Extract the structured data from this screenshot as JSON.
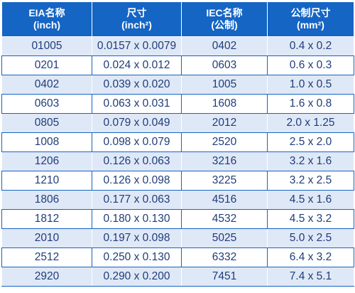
{
  "table": {
    "headers": [
      {
        "line1": "EIA名称",
        "line2": "(inch)"
      },
      {
        "line1": "尺寸",
        "line2": "(inch²)"
      },
      {
        "line1": "IEC名称",
        "line2": "(公制)"
      },
      {
        "line1": "公制尺寸",
        "line2": "(mm²)"
      }
    ],
    "rows": [
      [
        "01005",
        "0.0157 x 0.0079",
        "0402",
        "0.4 x 0.2"
      ],
      [
        "0201",
        "0.024 x 0.012",
        "0603",
        "0.6 x 0.3"
      ],
      [
        "0402",
        "0.039 x 0.020",
        "1005",
        "1.0 x 0.5"
      ],
      [
        "0603",
        "0.063 x 0.031",
        "1608",
        "1.6 x 0.8"
      ],
      [
        "0805",
        "0.079 x 0.049",
        "2012",
        "2.0 x 1.25"
      ],
      [
        "1008",
        "0.098 x 0.079",
        "2520",
        "2.5 x 2.0"
      ],
      [
        "1206",
        "0.126 x 0.063",
        "3216",
        "3.2 x 1.6"
      ],
      [
        "1210",
        "0.126 x 0.098",
        "3225",
        "3.2 x 2.5"
      ],
      [
        "1806",
        "0.177 x 0.063",
        "4516",
        "4.5 x 1.6"
      ],
      [
        "1812",
        "0.180 x 0.130",
        "4532",
        "4.5 x 3.2"
      ],
      [
        "2010",
        "0.197 x 0.098",
        "5025",
        "5.0 x 2.5"
      ],
      [
        "2512",
        "0.250 x 0.130",
        "6332",
        "6.4 x 3.2"
      ],
      [
        "2920",
        "0.290 x 0.200",
        "7451",
        "7.4 x 5.1"
      ]
    ]
  },
  "colors": {
    "header_bg": "#1565c4",
    "header_text": "#ffffff",
    "band_row": "#dfe8f6",
    "plain_row": "#ffffff",
    "cell_text": "#1f3d7a"
  }
}
